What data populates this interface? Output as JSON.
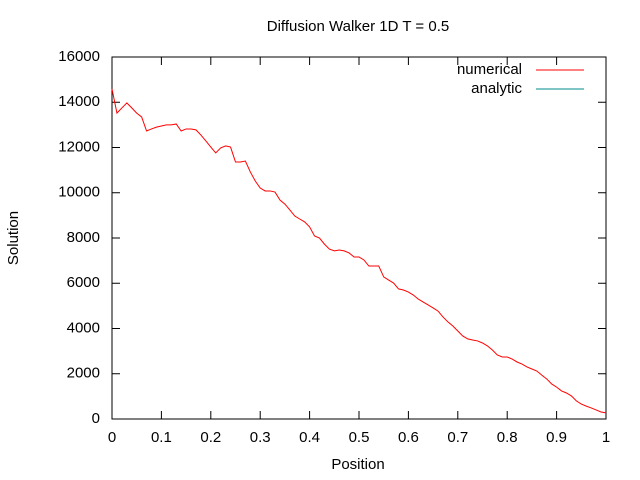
{
  "chart_data": {
    "type": "line",
    "title": "Diffusion Walker 1D T = 0.5",
    "xlabel": "Position",
    "ylabel": "Solution",
    "x": [
      0,
      0.01,
      0.02,
      0.03,
      0.04,
      0.05,
      0.06,
      0.07,
      0.08,
      0.09,
      0.1,
      0.11,
      0.12,
      0.13,
      0.14,
      0.15,
      0.16,
      0.17,
      0.18,
      0.19,
      0.2,
      0.21,
      0.22,
      0.23,
      0.24,
      0.25,
      0.26,
      0.27,
      0.28,
      0.29,
      0.3,
      0.31,
      0.32,
      0.33,
      0.34,
      0.35,
      0.36,
      0.37,
      0.38,
      0.39,
      0.4,
      0.41,
      0.42,
      0.43,
      0.44,
      0.45,
      0.46,
      0.47,
      0.48,
      0.49,
      0.5,
      0.51,
      0.52,
      0.53,
      0.54,
      0.55,
      0.56,
      0.57,
      0.58,
      0.59,
      0.6,
      0.61,
      0.62,
      0.63,
      0.64,
      0.65,
      0.66,
      0.67,
      0.68,
      0.69,
      0.7,
      0.71,
      0.72,
      0.73,
      0.74,
      0.75,
      0.76,
      0.77,
      0.78,
      0.79,
      0.8,
      0.81,
      0.82,
      0.83,
      0.84,
      0.85,
      0.86,
      0.87,
      0.88,
      0.89,
      0.9,
      0.91,
      0.92,
      0.93,
      0.94,
      0.95,
      0.96,
      0.97,
      0.98,
      0.99,
      1
    ],
    "series": [
      {
        "name": "numerical",
        "color": "#ff0000",
        "values": [
          14590,
          13520,
          13750,
          13970,
          13750,
          13520,
          13350,
          12730,
          12820,
          12900,
          12950,
          13000,
          13000,
          13040,
          12730,
          12820,
          12820,
          12780,
          12550,
          12290,
          12020,
          11760,
          11980,
          12070,
          12020,
          11360,
          11360,
          11400,
          10920,
          10520,
          10210,
          10080,
          10080,
          10030,
          9680,
          9500,
          9240,
          8970,
          8840,
          8710,
          8490,
          8090,
          8000,
          7730,
          7510,
          7430,
          7470,
          7430,
          7340,
          7160,
          7160,
          7030,
          6760,
          6760,
          6760,
          6280,
          6140,
          6010,
          5750,
          5700,
          5610,
          5480,
          5300,
          5170,
          5040,
          4910,
          4770,
          4510,
          4290,
          4110,
          3890,
          3670,
          3540,
          3490,
          3450,
          3360,
          3230,
          3050,
          2830,
          2740,
          2740,
          2650,
          2520,
          2430,
          2300,
          2210,
          2120,
          1940,
          1770,
          1550,
          1410,
          1240,
          1150,
          1020,
          800,
          660,
          570,
          490,
          400,
          310,
          270
        ]
      },
      {
        "name": "analytic",
        "color": "#008b8b",
        "values": [
          null,
          null,
          null,
          null,
          null,
          null,
          null,
          null,
          null,
          null,
          null,
          null,
          null,
          null,
          null,
          null,
          null,
          null,
          null,
          null,
          null,
          null,
          null,
          null,
          null,
          null,
          null,
          null,
          null,
          null,
          null,
          null,
          null,
          null,
          null,
          null,
          null,
          null,
          null,
          null,
          null,
          null,
          null,
          null,
          null,
          null,
          null,
          null,
          null,
          null,
          null,
          null,
          null,
          null,
          null,
          null,
          null,
          null,
          null,
          null,
          null,
          null,
          null,
          null,
          null,
          null,
          null,
          null,
          null,
          null,
          null,
          null,
          null,
          null,
          null,
          null,
          null,
          null,
          null,
          null,
          null,
          null,
          null,
          null,
          null,
          null,
          null,
          null,
          null,
          null,
          null,
          null,
          null,
          null,
          null,
          null,
          null,
          null,
          null,
          null,
          null
        ]
      }
    ],
    "xlim": [
      0,
      1
    ],
    "xticks": [
      0,
      0.1,
      0.2,
      0.3,
      0.4,
      0.5,
      0.6,
      0.7,
      0.8,
      0.9,
      1
    ],
    "ylim": [
      0,
      16000
    ],
    "yticks": [
      0,
      2000,
      4000,
      6000,
      8000,
      10000,
      12000,
      14000,
      16000
    ],
    "legend": "top-right"
  }
}
